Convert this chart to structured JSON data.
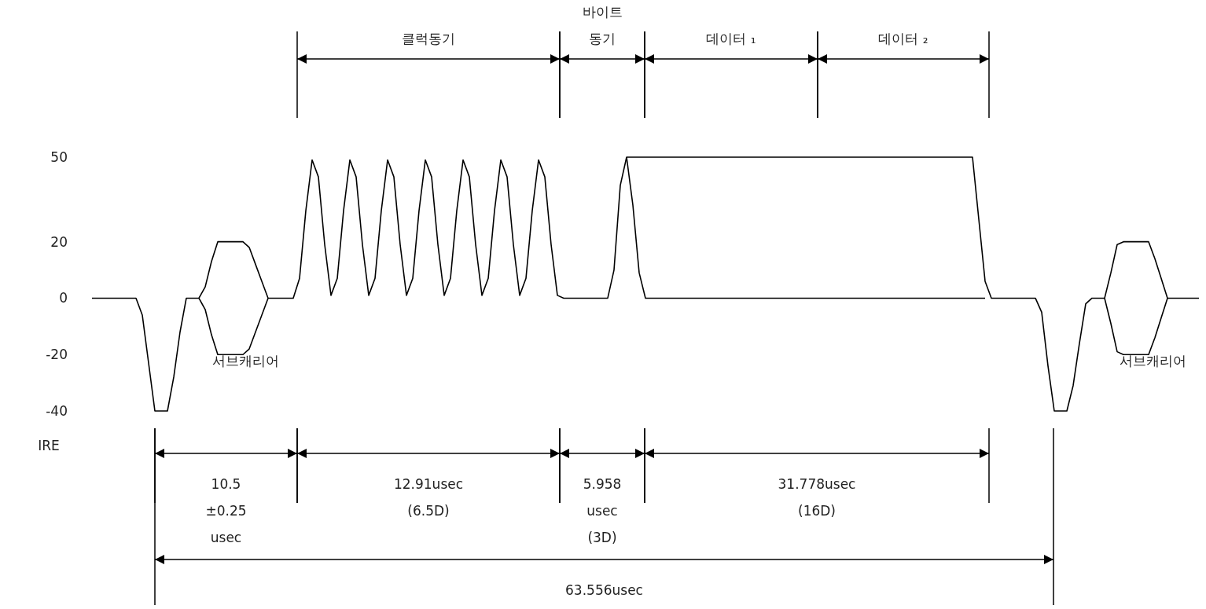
{
  "chart_data": {
    "type": "line",
    "ylabel": "IRE",
    "ylim": [
      -40,
      50
    ],
    "yticks": [
      -40,
      -20,
      0,
      20,
      50
    ],
    "tick_labels": "y",
    "categories": [
      null,
      null,
      null,
      null,
      null,
      null,
      null,
      null,
      null,
      null,
      null,
      null,
      null,
      null,
      null,
      null,
      null,
      null,
      null,
      null,
      null,
      null,
      null,
      null,
      null,
      null,
      null,
      null,
      null,
      null,
      null,
      null,
      null,
      null,
      null,
      null,
      null,
      null,
      null,
      null,
      null,
      null,
      null,
      null,
      null,
      null,
      null,
      null,
      null,
      null,
      null,
      null,
      null,
      null,
      null,
      null,
      null,
      null,
      null,
      null,
      null,
      null,
      null,
      null,
      null,
      null,
      null,
      null,
      null,
      null,
      null,
      null,
      null,
      null,
      null,
      null,
      null,
      null,
      null,
      null,
      null,
      null,
      null,
      null,
      null,
      null,
      null,
      null,
      null,
      null,
      null,
      null,
      null,
      null,
      null,
      null,
      null,
      null,
      null,
      null,
      null,
      null,
      null,
      null,
      null,
      null,
      null,
      null,
      null,
      null,
      null,
      null,
      null,
      null,
      null,
      null,
      null,
      null,
      null,
      null,
      null,
      null,
      null,
      null,
      null,
      null,
      null,
      null,
      null,
      null,
      null,
      null,
      null,
      null,
      null,
      null,
      null,
      null,
      null,
      null,
      null,
      null,
      null,
      null,
      null,
      null,
      null,
      null,
      null,
      null,
      null,
      null,
      null,
      null,
      null,
      null,
      null,
      null,
      null,
      null,
      null,
      null,
      null,
      null,
      null,
      null,
      null,
      null,
      null,
      null,
      null,
      null,
      null,
      null,
      null,
      null,
      null
    ],
    "series": [
      {
        "color": "#000000",
        "values": [
          0,
          0,
          0,
          0,
          0,
          0,
          0,
          0,
          -6,
          -23,
          -40,
          -40,
          -40,
          -28,
          -12,
          0,
          0,
          0,
          4,
          13,
          20,
          20,
          20,
          20,
          20,
          18,
          12,
          6,
          0,
          0,
          0,
          0,
          0,
          7,
          31,
          49,
          43,
          19,
          1,
          7,
          31,
          49,
          43,
          19,
          1,
          7,
          31,
          49,
          43,
          19,
          1,
          7,
          31,
          49,
          43,
          19,
          1,
          7,
          31,
          49,
          43,
          19,
          1,
          7,
          31,
          49,
          43,
          19,
          1,
          7,
          31,
          49,
          43,
          19,
          1,
          0,
          0,
          0,
          0,
          0,
          0,
          0,
          0,
          10,
          40,
          50,
          50,
          50,
          50,
          50,
          50,
          50,
          50,
          50,
          50,
          50,
          50,
          50,
          50,
          50,
          50,
          50,
          50,
          50,
          50,
          50,
          50,
          50,
          50,
          50,
          50,
          50,
          50,
          50,
          50,
          50,
          50,
          50,
          50,
          50,
          50,
          50,
          50,
          50,
          50,
          50,
          50,
          50,
          50,
          50,
          50,
          50,
          50,
          50,
          50,
          50,
          50,
          50,
          50,
          50,
          50,
          28,
          6,
          0,
          0,
          0,
          0,
          0,
          0,
          0,
          0,
          -5,
          -24,
          -40,
          -40,
          -40,
          -31,
          -16,
          -2,
          0,
          0,
          0,
          9,
          19,
          20,
          20,
          20,
          20,
          20,
          14,
          7,
          0,
          0,
          0,
          0,
          0,
          0
        ]
      },
      {
        "color": "#000000",
        "values": [
          null,
          null,
          null,
          null,
          null,
          null,
          null,
          null,
          null,
          null,
          null,
          null,
          null,
          null,
          null,
          null,
          null,
          null,
          null,
          null,
          null,
          null,
          null,
          null,
          null,
          null,
          null,
          null,
          null,
          null,
          null,
          null,
          null,
          null,
          null,
          null,
          null,
          null,
          null,
          null,
          null,
          null,
          null,
          null,
          null,
          null,
          null,
          null,
          null,
          null,
          null,
          null,
          null,
          null,
          null,
          null,
          null,
          null,
          null,
          null,
          null,
          null,
          null,
          null,
          null,
          null,
          null,
          null,
          null,
          null,
          null,
          null,
          null,
          null,
          null,
          null,
          null,
          null,
          null,
          null,
          null,
          null,
          null,
          null,
          null,
          50,
          33,
          9,
          0,
          0,
          0,
          0,
          0,
          0,
          0,
          0,
          0,
          0,
          0,
          0,
          0,
          0,
          0,
          0,
          0,
          0,
          0,
          0,
          0,
          0,
          0,
          0,
          0,
          0,
          0,
          0,
          0,
          0,
          0,
          0,
          0,
          0,
          0,
          0,
          0,
          0,
          0,
          0,
          0,
          0,
          0,
          0,
          0,
          0,
          0,
          0,
          0,
          0,
          0,
          0,
          0,
          0,
          0,
          null,
          null,
          null,
          null,
          null,
          null,
          null,
          null,
          null,
          null,
          null,
          null,
          null,
          null,
          null,
          null,
          null,
          null,
          null,
          null,
          null,
          null,
          null,
          null,
          null,
          null,
          null,
          null,
          null,
          null,
          null,
          null,
          null,
          null
        ]
      },
      {
        "color": "#000000",
        "values": [
          null,
          null,
          null,
          null,
          null,
          null,
          null,
          null,
          null,
          null,
          null,
          null,
          null,
          null,
          null,
          null,
          null,
          0,
          -4,
          -13,
          -20,
          -20,
          -20,
          -20,
          -20,
          -18,
          -12,
          -6,
          0,
          null,
          null,
          null,
          null,
          null,
          null,
          null,
          null,
          null,
          null,
          null,
          null,
          null,
          null,
          null,
          null,
          null,
          null,
          null,
          null,
          null,
          null,
          null,
          null,
          null,
          null,
          null,
          null,
          null,
          null,
          null,
          null,
          null,
          null,
          null,
          null,
          null,
          null,
          null,
          null,
          null,
          null,
          null,
          null,
          null,
          null,
          null,
          null,
          null,
          null,
          null,
          null,
          null,
          null,
          null,
          null,
          null,
          null,
          null,
          null,
          null,
          null,
          null,
          null,
          null,
          null,
          null,
          null,
          null,
          null,
          null,
          null,
          null,
          null,
          null,
          null,
          null,
          null,
          null,
          null,
          null,
          null,
          null,
          null,
          null,
          null,
          null,
          null,
          null,
          null,
          null,
          null,
          null,
          null,
          null,
          null,
          null,
          null,
          null,
          null,
          null,
          null,
          null,
          null,
          null,
          null,
          null,
          null,
          null,
          null,
          null,
          null,
          null,
          null,
          null,
          null,
          null,
          null,
          null,
          null,
          null,
          null,
          null,
          null,
          null,
          null,
          null,
          null,
          null,
          null,
          null,
          null,
          null,
          null,
          null,
          null,
          null,
          null,
          null,
          null,
          null,
          null,
          null,
          null,
          null,
          null,
          null,
          null
        ]
      },
      {
        "color": "#000000",
        "values": [
          null,
          null,
          null,
          null,
          null,
          null,
          null,
          null,
          null,
          null,
          null,
          null,
          null,
          null,
          null,
          null,
          null,
          null,
          null,
          null,
          null,
          null,
          null,
          null,
          null,
          null,
          null,
          null,
          null,
          null,
          null,
          null,
          null,
          null,
          null,
          null,
          null,
          null,
          null,
          null,
          null,
          null,
          null,
          null,
          null,
          null,
          null,
          null,
          null,
          null,
          null,
          null,
          null,
          null,
          null,
          null,
          null,
          null,
          null,
          null,
          null,
          null,
          null,
          null,
          null,
          null,
          null,
          null,
          null,
          null,
          null,
          null,
          null,
          null,
          null,
          null,
          null,
          null,
          null,
          null,
          null,
          null,
          null,
          null,
          null,
          null,
          null,
          null,
          null,
          null,
          null,
          null,
          null,
          null,
          null,
          null,
          null,
          null,
          null,
          null,
          null,
          null,
          null,
          null,
          null,
          null,
          null,
          null,
          null,
          null,
          null,
          null,
          null,
          null,
          null,
          null,
          null,
          null,
          null,
          null,
          null,
          null,
          null,
          null,
          null,
          null,
          null,
          null,
          null,
          null,
          null,
          null,
          null,
          null,
          null,
          null,
          null,
          null,
          null,
          null,
          null,
          null,
          null,
          null,
          null,
          null,
          null,
          null,
          null,
          null,
          null,
          null,
          null,
          null,
          null,
          null,
          null,
          null,
          null,
          null,
          null,
          0,
          -9,
          -19,
          -20,
          -20,
          -20,
          -20,
          -20,
          -14,
          -7,
          0,
          null,
          null,
          null,
          null,
          null
        ]
      }
    ],
    "annotations": [
      "클럭동기",
      "바이트\n동기",
      "데이터 ₁",
      "데이터 ₂",
      "10.5\n±0.25\nusec",
      "12.91usec\n(6.5D)",
      "5.958\nusec\n(3D)",
      "31.778usec\n(16D)",
      "63.556usec",
      "서브캐리어",
      "서브캐리어"
    ]
  }
}
